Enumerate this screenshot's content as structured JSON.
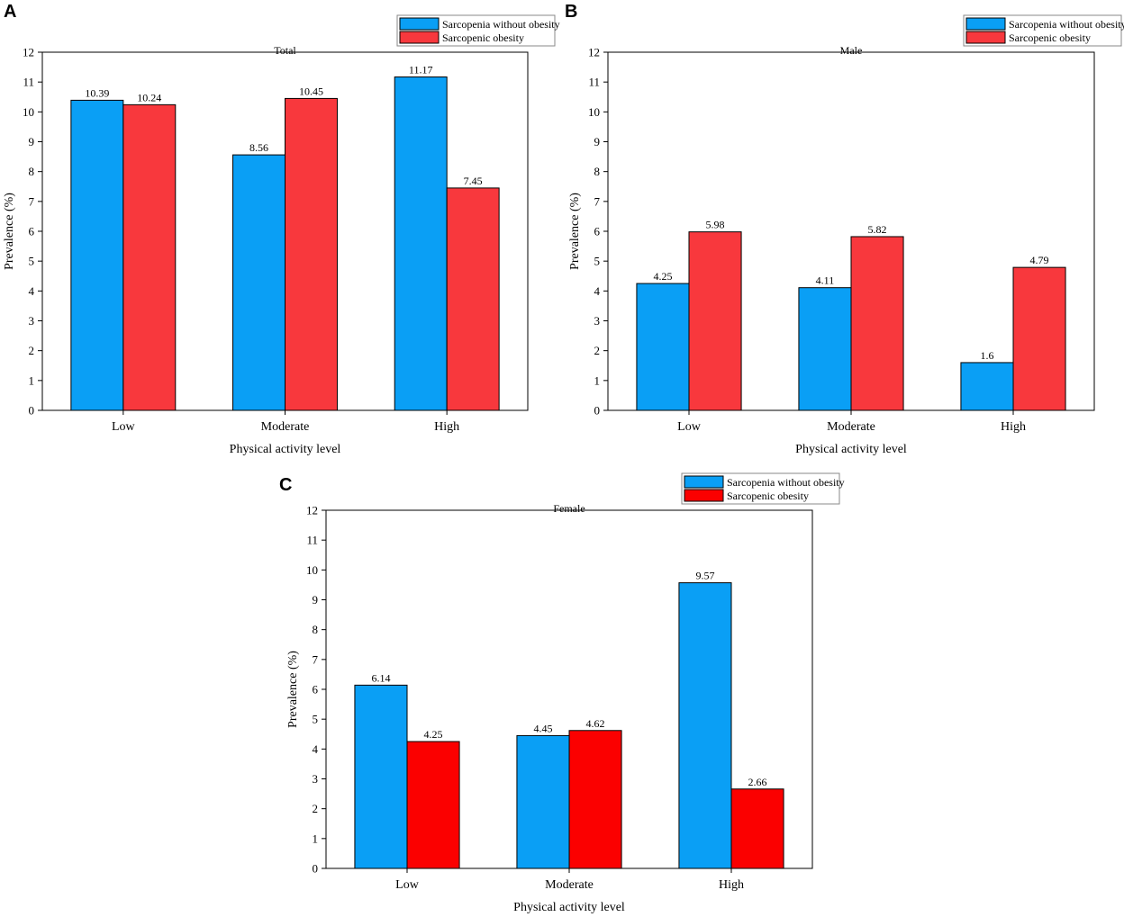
{
  "chart_data": [
    {
      "panel": "A",
      "type": "bar",
      "title": "Total",
      "xlabel": "Physical activity level",
      "ylabel": "Prevalence (%)",
      "ylim": [
        0,
        12
      ],
      "yticks": [
        0,
        1,
        2,
        3,
        4,
        5,
        6,
        7,
        8,
        9,
        10,
        11,
        12
      ],
      "categories": [
        "Low",
        "Moderate",
        "High"
      ],
      "series": [
        {
          "name": "Sarcopenia without obesity",
          "color": "#0a9ff5",
          "values": [
            10.39,
            8.56,
            11.17
          ],
          "labels": [
            "10.39",
            "8.56",
            "11.17"
          ]
        },
        {
          "name": "Sarcopenic obesity",
          "color": "#f8383d",
          "values": [
            10.24,
            10.45,
            7.45
          ],
          "labels": [
            "10.24",
            "10.45",
            "7.45"
          ]
        }
      ],
      "legend": "top-right"
    },
    {
      "panel": "B",
      "type": "bar",
      "title": "Male",
      "xlabel": "Physical activity level",
      "ylabel": "Prevalence (%)",
      "ylim": [
        0,
        12
      ],
      "yticks": [
        0,
        1,
        2,
        3,
        4,
        5,
        6,
        7,
        8,
        9,
        10,
        11,
        12
      ],
      "categories": [
        "Low",
        "Moderate",
        "High"
      ],
      "series": [
        {
          "name": "Sarcopenia without obesity",
          "color": "#0a9ff5",
          "values": [
            4.25,
            4.11,
            1.6
          ],
          "labels": [
            "4.25",
            "4.11",
            "1.6"
          ]
        },
        {
          "name": "Sarcopenic obesity",
          "color": "#f8383d",
          "values": [
            5.98,
            5.82,
            4.79
          ],
          "labels": [
            "5.98",
            "5.82",
            "4.79"
          ]
        }
      ],
      "legend": "top-right"
    },
    {
      "panel": "C",
      "type": "bar",
      "title": "Female",
      "xlabel": "Physical activity level",
      "ylabel": "Prevalence (%)",
      "ylim": [
        0,
        12
      ],
      "yticks": [
        0,
        1,
        2,
        3,
        4,
        5,
        6,
        7,
        8,
        9,
        10,
        11,
        12
      ],
      "categories": [
        "Low",
        "Moderate",
        "High"
      ],
      "series": [
        {
          "name": "Sarcopenia without obesity",
          "color": "#0a9ff5",
          "values": [
            6.14,
            4.45,
            9.57
          ],
          "labels": [
            "6.14",
            "4.45",
            "9.57"
          ]
        },
        {
          "name": "Sarcopenic obesity",
          "color": "#fb0000",
          "values": [
            4.25,
            4.62,
            2.66
          ],
          "labels": [
            "4.25",
            "4.62",
            "2.66"
          ]
        }
      ],
      "legend": "top-right"
    }
  ]
}
